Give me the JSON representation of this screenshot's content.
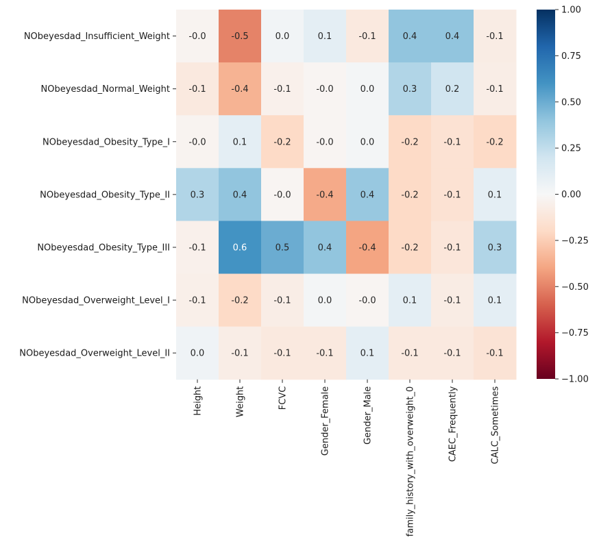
{
  "chart_data": {
    "type": "heatmap",
    "title": "",
    "xlabel": "",
    "ylabel": "",
    "rows": [
      "NObeyesdad_Insufficient_Weight",
      "NObeyesdad_Normal_Weight",
      "NObeyesdad_Obesity_Type_I",
      "NObeyesdad_Obesity_Type_II",
      "NObeyesdad_Obesity_Type_III",
      "NObeyesdad_Overweight_Level_I",
      "NObeyesdad_Overweight_Level_II"
    ],
    "columns": [
      "Height",
      "Weight",
      "FCVC",
      "Gender_Female",
      "Gender_Male",
      "family_history_with_overweight_0",
      "CAEC_Frequently",
      "CALC_Sometimes"
    ],
    "values": [
      [
        -0.03,
        -0.5,
        0.03,
        0.1,
        -0.1,
        0.4,
        0.4,
        -0.08
      ],
      [
        -0.1,
        -0.35,
        -0.05,
        -0.02,
        0.02,
        0.3,
        0.2,
        -0.07
      ],
      [
        -0.03,
        0.1,
        -0.2,
        -0.02,
        0.02,
        -0.2,
        -0.15,
        -0.2
      ],
      [
        0.3,
        0.4,
        -0.02,
        -0.38,
        0.38,
        -0.2,
        -0.15,
        0.1
      ],
      [
        -0.05,
        0.6,
        0.5,
        0.4,
        -0.4,
        -0.2,
        -0.12,
        0.3
      ],
      [
        -0.06,
        -0.2,
        -0.07,
        0.02,
        -0.02,
        0.1,
        -0.08,
        0.1
      ],
      [
        0.04,
        -0.07,
        -0.1,
        -0.1,
        0.1,
        -0.1,
        -0.1,
        -0.14
      ]
    ],
    "cell_labels": [
      [
        "-0.0",
        "-0.5",
        "0.0",
        "0.1",
        "-0.1",
        "0.4",
        "0.4",
        "-0.1"
      ],
      [
        "-0.1",
        "-0.4",
        "-0.1",
        "-0.0",
        "0.0",
        "0.3",
        "0.2",
        "-0.1"
      ],
      [
        "-0.0",
        "0.1",
        "-0.2",
        "-0.0",
        "0.0",
        "-0.2",
        "-0.1",
        "-0.2"
      ],
      [
        "0.3",
        "0.4",
        "-0.0",
        "-0.4",
        "0.4",
        "-0.2",
        "-0.1",
        "0.1"
      ],
      [
        "-0.1",
        "0.6",
        "0.5",
        "0.4",
        "-0.4",
        "-0.2",
        "-0.1",
        "0.3"
      ],
      [
        "-0.1",
        "-0.2",
        "-0.1",
        "0.0",
        "-0.0",
        "0.1",
        "-0.1",
        "0.1"
      ],
      [
        "0.0",
        "-0.1",
        "-0.1",
        "-0.1",
        "0.1",
        "-0.1",
        "-0.1",
        "-0.1"
      ]
    ],
    "colormap": "RdBu",
    "vmin": -1.0,
    "vmax": 1.0,
    "colorbar_ticks": [
      1.0,
      0.75,
      0.5,
      0.25,
      0.0,
      -0.25,
      -0.5,
      -0.75,
      -1.0
    ],
    "colorbar_tick_labels": [
      "1.00",
      "0.75",
      "0.50",
      "0.25",
      "0.00",
      "−0.25",
      "−0.50",
      "−0.75",
      "−1.00"
    ],
    "legend_position": "right",
    "grid": false
  }
}
